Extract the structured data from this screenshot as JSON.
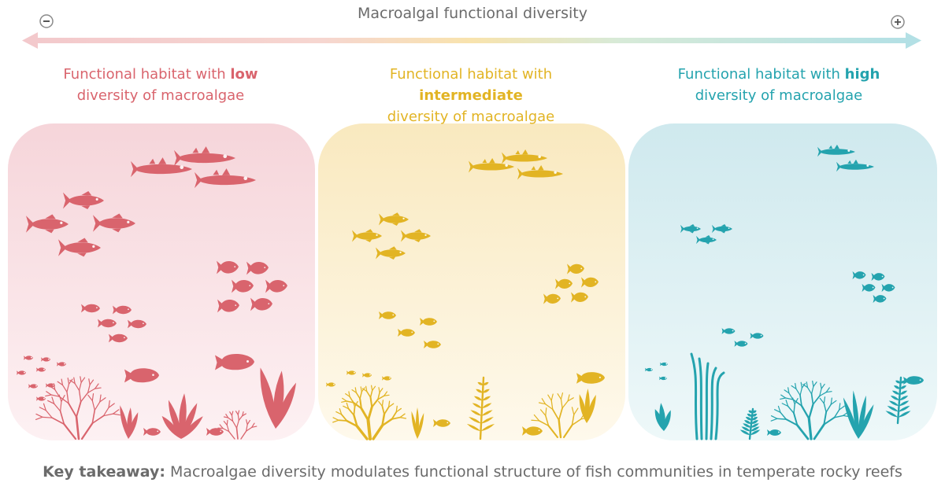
{
  "axis": {
    "title": "Macroalgal functional diversity",
    "minus_symbol": "−",
    "plus_symbol": "+"
  },
  "panels": [
    {
      "id": "low",
      "pre": "Functional habitat with ",
      "key": "low",
      "post": "diversity of macroalgae",
      "color": "#d9646d",
      "bg": "#f9dfe3"
    },
    {
      "id": "intermediate",
      "pre": "Functional habitat with ",
      "key": "intermediate",
      "post": "diversity of macroalgae",
      "color": "#e2b424",
      "bg": "#fbefcf"
    },
    {
      "id": "high",
      "pre": "Functional habitat with ",
      "key": "high",
      "post": "diversity of macroalgae",
      "color": "#24a3ae",
      "bg": "#d5eef2"
    }
  ],
  "takeaway": {
    "label": "Key takeaway:",
    "text": "Macroalgae diversity modulates functional structure of fish communities in temperate rocky reefs"
  },
  "icons": [
    "fish-icon",
    "macroalgae-icon",
    "coral-icon",
    "arrow-icon"
  ]
}
